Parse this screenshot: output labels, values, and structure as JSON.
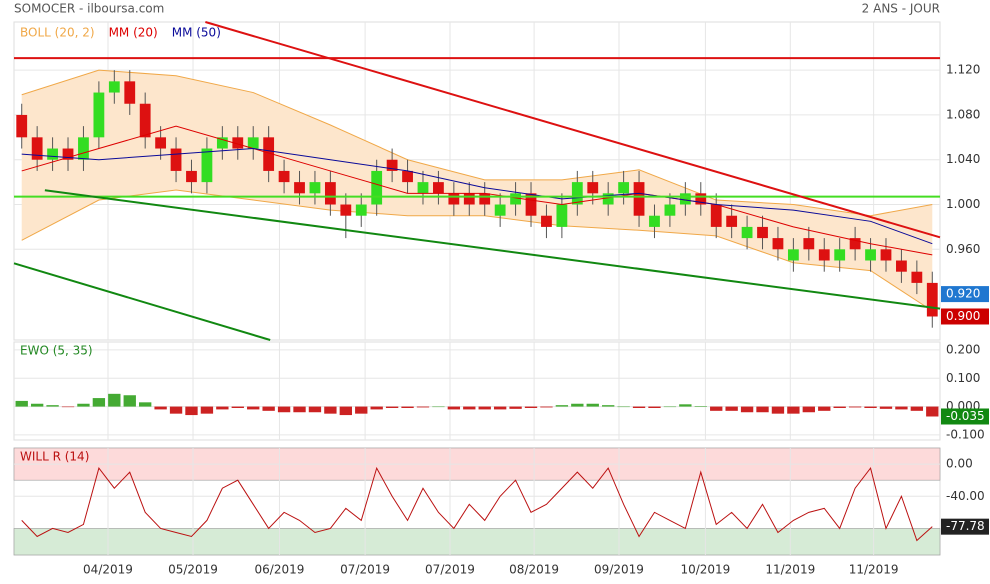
{
  "header": {
    "title": "SOMOCER - ilboursa.com",
    "period": "2 ANS - JOUR"
  },
  "chart_data": [
    {
      "type": "candlestick",
      "xlim": [
        -0.5,
        59.5
      ],
      "ylim": [
        0.879,
        1.163
      ],
      "yticks": [
        {
          "value": 0.96,
          "label": "0.960"
        },
        {
          "value": 1.0,
          "label": "1.000"
        },
        {
          "value": 1.04,
          "label": "1.040"
        },
        {
          "value": 1.08,
          "label": "1.080"
        },
        {
          "value": 1.12,
          "label": "1.120"
        }
      ],
      "up_color": "#33dd22",
      "down_color": "#dd1111",
      "open": [
        1.08,
        1.06,
        1.04,
        1.05,
        1.04,
        1.06,
        1.1,
        1.11,
        1.09,
        1.06,
        1.05,
        1.03,
        1.02,
        1.05,
        1.06,
        1.05,
        1.06,
        1.03,
        1.02,
        1.01,
        1.02,
        1.0,
        0.99,
        1.0,
        1.04,
        1.03,
        1.01,
        1.02,
        1.01,
        1.01,
        1.01,
        0.99,
        1.0,
        1.01,
        0.99,
        0.98,
        1.0,
        1.02,
        1.0,
        1.01,
        1.02,
        0.98,
        0.99,
        1.0,
        1.01,
        1.0,
        0.99,
        0.97,
        0.98,
        0.97,
        0.95,
        0.97,
        0.96,
        0.95,
        0.97,
        0.95,
        0.96,
        0.95,
        0.94,
        0.93
      ],
      "high": [
        1.09,
        1.07,
        1.06,
        1.06,
        1.07,
        1.11,
        1.12,
        1.12,
        1.1,
        1.07,
        1.06,
        1.04,
        1.06,
        1.07,
        1.07,
        1.07,
        1.07,
        1.04,
        1.03,
        1.03,
        1.03,
        1.01,
        1.01,
        1.04,
        1.05,
        1.04,
        1.03,
        1.03,
        1.02,
        1.02,
        1.02,
        1.01,
        1.02,
        1.02,
        1.0,
        1.01,
        1.03,
        1.03,
        1.02,
        1.03,
        1.03,
        1.0,
        1.01,
        1.02,
        1.02,
        1.01,
        1.0,
        0.99,
        0.99,
        0.98,
        0.97,
        0.98,
        0.97,
        0.97,
        0.98,
        0.97,
        0.97,
        0.96,
        0.95,
        0.94
      ],
      "low": [
        1.05,
        1.03,
        1.03,
        1.03,
        1.03,
        1.05,
        1.09,
        1.08,
        1.05,
        1.04,
        1.02,
        1.01,
        1.01,
        1.04,
        1.04,
        1.04,
        1.02,
        1.01,
        1.0,
        1.0,
        0.99,
        0.97,
        0.98,
        0.99,
        1.02,
        1.01,
        1.0,
        1.0,
        0.99,
        0.99,
        0.99,
        0.98,
        0.99,
        0.98,
        0.97,
        0.97,
        0.99,
        1.0,
        0.99,
        1.0,
        0.98,
        0.97,
        0.98,
        0.99,
        0.99,
        0.97,
        0.97,
        0.96,
        0.96,
        0.95,
        0.94,
        0.95,
        0.94,
        0.94,
        0.95,
        0.94,
        0.94,
        0.93,
        0.92,
        0.89
      ],
      "close": [
        1.06,
        1.04,
        1.05,
        1.04,
        1.06,
        1.1,
        1.11,
        1.09,
        1.06,
        1.05,
        1.03,
        1.02,
        1.05,
        1.06,
        1.05,
        1.06,
        1.03,
        1.02,
        1.01,
        1.02,
        1.0,
        0.99,
        1.0,
        1.03,
        1.03,
        1.02,
        1.02,
        1.01,
        1.0,
        1.0,
        1.0,
        1.0,
        1.01,
        0.99,
        0.98,
        1.0,
        1.02,
        1.01,
        1.01,
        1.02,
        0.99,
        0.99,
        1.0,
        1.01,
        1.0,
        0.98,
        0.98,
        0.98,
        0.97,
        0.96,
        0.96,
        0.96,
        0.95,
        0.96,
        0.96,
        0.96,
        0.95,
        0.94,
        0.93,
        0.9
      ],
      "line_x": [
        0,
        5,
        10,
        15,
        20,
        25,
        30,
        35,
        40,
        45,
        50,
        55,
        59
      ],
      "band": {
        "name": "BOLL (20, 2)",
        "color": "#f0a848",
        "fill": "#fde6cc",
        "upper": [
          1.098,
          1.12,
          1.115,
          1.1,
          1.071,
          1.04,
          1.022,
          1.022,
          1.031,
          1.004,
          1.0,
          0.99,
          1.0
        ],
        "lower": [
          0.968,
          1.004,
          1.013,
          1.004,
          0.995,
          0.99,
          0.99,
          0.981,
          0.977,
          0.972,
          0.948,
          0.941,
          0.905
        ]
      },
      "series": [
        {
          "name": "MM (20)",
          "color": "#dd0000",
          "values": [
            1.03,
            1.05,
            1.07,
            1.05,
            1.03,
            1.01,
            1.01,
            1.0,
            1.01,
            1.0,
            0.98,
            0.965,
            0.955
          ]
        },
        {
          "name": "MM (50)",
          "color": "#0a0a99",
          "values": [
            1.045,
            1.04,
            1.045,
            1.05,
            1.04,
            1.03,
            1.015,
            1.005,
            1.01,
            1.0,
            0.995,
            0.985,
            0.965
          ]
        }
      ],
      "trend_lines": [
        {
          "color": "#dd1111",
          "x": [
            -0.5,
            59.5
          ],
          "y": [
            1.1307,
            1.1307
          ]
        },
        {
          "color": "#44dd22",
          "x": [
            -0.5,
            59.5
          ],
          "y": [
            1.007,
            1.007
          ]
        },
        {
          "color": "#dd1111",
          "x": [
            11.9,
            59.5
          ],
          "y": [
            1.163,
            0.9707
          ]
        },
        {
          "color": "#118811",
          "x": [
            1.5,
            59.5
          ],
          "y": [
            1.0127,
            0.907
          ]
        },
        {
          "color": "#118811",
          "x": [
            -0.5,
            16.1
          ],
          "y": [
            0.9475,
            0.879
          ]
        }
      ],
      "price_tags": [
        {
          "value": 0.92,
          "label": "0.920",
          "color": "#1f77d0"
        },
        {
          "value": 0.9,
          "label": "0.900",
          "color": "#cc0000"
        }
      ]
    },
    {
      "type": "bar",
      "title": "EWO (5, 35)",
      "xlim": [
        -0.5,
        59.5
      ],
      "ylim": [
        -0.118,
        0.228
      ],
      "yticks": [
        {
          "value": 0.2,
          "label": "0.200"
        },
        {
          "value": 0.1,
          "label": "0.100"
        },
        {
          "value": 0,
          "label": "0.000"
        },
        {
          "value": -0.1,
          "label": "-0.100"
        }
      ],
      "up_color": "#44aa33",
      "down_color": "#cc2222",
      "values": [
        0.02,
        0.01,
        0.005,
        -0.002,
        0.01,
        0.03,
        0.045,
        0.04,
        0.015,
        -0.01,
        -0.025,
        -0.03,
        -0.025,
        -0.01,
        -0.005,
        -0.01,
        -0.015,
        -0.02,
        -0.02,
        -0.02,
        -0.025,
        -0.03,
        -0.025,
        -0.01,
        -0.005,
        -0.005,
        -0.003,
        0,
        -0.01,
        -0.01,
        -0.01,
        -0.01,
        -0.008,
        -0.005,
        -0.003,
        0.005,
        0.01,
        0.01,
        0.005,
        0,
        -0.005,
        -0.005,
        0,
        0.008,
        0.002,
        -0.015,
        -0.015,
        -0.02,
        -0.02,
        -0.025,
        -0.025,
        -0.02,
        -0.015,
        -0.005,
        -0.003,
        -0.005,
        -0.008,
        -0.01,
        -0.015,
        -0.035
      ],
      "tag": {
        "value": -0.035,
        "label": "-0.035",
        "color": "#118811"
      }
    },
    {
      "type": "line",
      "title": "WILL R (14)",
      "color": "#bb1111",
      "xlim": [
        -0.5,
        59.5
      ],
      "ylim": [
        -113,
        20
      ],
      "yticks": [
        {
          "value": 0,
          "label": "0.00"
        },
        {
          "value": -40,
          "label": "-40.00"
        }
      ],
      "zones": [
        {
          "from": 20,
          "to": -20,
          "color": "#fddada"
        },
        {
          "from": -80,
          "to": -113,
          "color": "#d6ebd6"
        }
      ],
      "values": [
        -70,
        -90,
        -80,
        -85,
        -75,
        -5,
        -30,
        -10,
        -60,
        -80,
        -85,
        -90,
        -70,
        -30,
        -20,
        -50,
        -80,
        -60,
        -70,
        -85,
        -80,
        -55,
        -70,
        -5,
        -40,
        -70,
        -30,
        -60,
        -80,
        -50,
        -70,
        -40,
        -20,
        -60,
        -50,
        -30,
        -10,
        -30,
        -5,
        -50,
        -90,
        -60,
        -70,
        -80,
        -10,
        -75,
        -60,
        -80,
        -50,
        -85,
        -70,
        -60,
        -55,
        -80,
        -30,
        -5,
        -80,
        -40,
        -95,
        -77.78
      ],
      "tag": {
        "value": -77.78,
        "label": "-77.78",
        "color": "#222222"
      },
      "xticks": [
        {
          "value": 5.59,
          "label": "04/2019"
        },
        {
          "value": 11.1,
          "label": "05/2019"
        },
        {
          "value": 16.7,
          "label": "06/2019"
        },
        {
          "value": 22.25,
          "label": "07/2019"
        },
        {
          "value": 27.75,
          "label": "07/2019"
        },
        {
          "value": 33.2,
          "label": "08/2019"
        },
        {
          "value": 38.7,
          "label": "09/2019"
        },
        {
          "value": 44.3,
          "label": "10/2019"
        },
        {
          "value": 49.8,
          "label": "11/2019"
        },
        {
          "value": 55.2,
          "label": "11/2019"
        }
      ]
    }
  ]
}
